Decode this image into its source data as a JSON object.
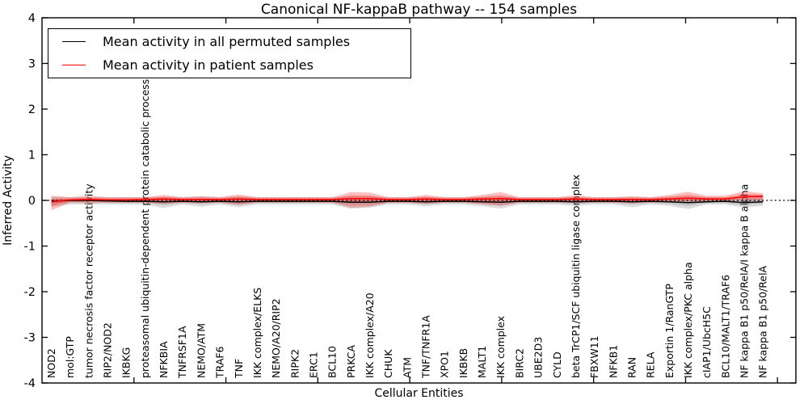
{
  "chart_data": {
    "type": "line",
    "title": "Canonical NF-kappaB pathway -- 154 samples",
    "xlabel": "Cellular Entities",
    "ylabel": "Inferred Activity",
    "ylim": [
      -4,
      4
    ],
    "yticks": [
      4,
      3,
      2,
      1,
      0,
      -1,
      -2,
      -3,
      -4
    ],
    "grid": false,
    "legend_position": "upper left",
    "zero_line": 0,
    "categories": [
      "NOD2",
      "mol:GTP",
      "tumor necrosis factor receptor activity",
      "RIP2/NOD2",
      "IKBKG",
      "proteasomal ubiquitin-dependent protein catabolic process",
      "NFKBIA",
      "TNFRSF1A",
      "NEMO/ATM",
      "TRAF6",
      "TNF",
      "IKK complex/ELKS",
      "NEMO/A20/RIP2",
      "RIPK2",
      "ERC1",
      "BCL10",
      "PRKCA",
      "IKK complex/A20",
      "CHUK",
      "ATM",
      "TNF/TNFR1A",
      "XPO1",
      "IKBKB",
      "MALT1",
      "IKK complex",
      "BIRC2",
      "UBE2D3",
      "CYLD",
      "beta TrCP1/SCF ubiquitin ligase complex",
      "FBXW11",
      "NFKB1",
      "RAN",
      "RELA",
      "Exportin 1/RanGTP",
      "IKK complex/PKC alpha",
      "cIAP1/UbcH5C",
      "BCL10/MALT1/TRAF6",
      "NF kappa B1 p50/RelA/I kappa B alpha",
      "NF kappa B1 p50/RelA"
    ],
    "series": [
      {
        "name": "Mean activity in all permuted samples",
        "color": "#000000",
        "values": [
          -0.02,
          0.0,
          0.0,
          -0.01,
          -0.02,
          -0.02,
          -0.03,
          -0.02,
          -0.03,
          -0.02,
          -0.03,
          -0.02,
          -0.02,
          -0.02,
          -0.02,
          -0.02,
          -0.04,
          -0.04,
          -0.02,
          -0.02,
          -0.03,
          -0.02,
          -0.02,
          -0.03,
          -0.04,
          -0.02,
          -0.02,
          -0.02,
          -0.03,
          -0.02,
          -0.02,
          -0.03,
          -0.02,
          -0.03,
          -0.05,
          -0.03,
          -0.02,
          -0.05,
          -0.03
        ]
      },
      {
        "name": "Mean activity in patient samples",
        "color": "#ff0000",
        "values": [
          -0.03,
          0.01,
          0.02,
          0.01,
          0.01,
          0.02,
          0.03,
          0.02,
          0.02,
          0.02,
          0.03,
          0.02,
          0.02,
          0.02,
          0.02,
          0.02,
          0.04,
          0.04,
          0.02,
          0.02,
          0.03,
          0.02,
          0.02,
          0.03,
          0.04,
          0.02,
          0.02,
          0.02,
          0.03,
          0.02,
          0.02,
          0.02,
          0.02,
          0.03,
          0.05,
          0.03,
          0.03,
          0.08,
          0.09
        ]
      }
    ],
    "bands": [
      {
        "name": "permuted-band",
        "series": 0,
        "color": "#8a8a8a",
        "lo": [
          -0.14,
          -0.09,
          -0.09,
          -0.09,
          -0.09,
          -0.09,
          -0.17,
          -0.09,
          -0.14,
          -0.09,
          -0.15,
          -0.09,
          -0.09,
          -0.09,
          -0.09,
          -0.09,
          -0.18,
          -0.16,
          -0.09,
          -0.09,
          -0.13,
          -0.09,
          -0.09,
          -0.13,
          -0.18,
          -0.09,
          -0.09,
          -0.09,
          -0.12,
          -0.09,
          -0.09,
          -0.15,
          -0.09,
          -0.12,
          -0.19,
          -0.09,
          -0.09,
          -0.16,
          -0.12
        ],
        "hi": [
          0.08,
          0.07,
          0.07,
          0.07,
          0.07,
          0.07,
          0.08,
          0.07,
          0.09,
          0.07,
          0.09,
          0.07,
          0.07,
          0.07,
          0.07,
          0.07,
          0.09,
          0.09,
          0.07,
          0.07,
          0.08,
          0.07,
          0.07,
          0.08,
          0.08,
          0.07,
          0.07,
          0.07,
          0.08,
          0.07,
          0.07,
          0.08,
          0.07,
          0.08,
          0.09,
          0.07,
          0.07,
          0.1,
          0.1
        ]
      },
      {
        "name": "patient-band",
        "series": 1,
        "color": "#ff2a2a",
        "lo": [
          -0.22,
          -0.05,
          -0.06,
          -0.05,
          -0.05,
          -0.05,
          -0.08,
          -0.05,
          -0.06,
          -0.05,
          -0.1,
          -0.05,
          -0.05,
          -0.05,
          -0.05,
          -0.05,
          -0.16,
          -0.14,
          -0.05,
          -0.05,
          -0.08,
          -0.05,
          -0.05,
          -0.08,
          -0.12,
          -0.05,
          -0.05,
          -0.05,
          -0.06,
          -0.05,
          -0.05,
          -0.06,
          -0.05,
          -0.04,
          -0.04,
          -0.03,
          -0.02,
          0.0,
          -0.01
        ],
        "hi": [
          0.1,
          0.07,
          0.1,
          0.07,
          0.07,
          0.07,
          0.12,
          0.07,
          0.09,
          0.07,
          0.13,
          0.07,
          0.07,
          0.07,
          0.07,
          0.07,
          0.18,
          0.17,
          0.07,
          0.07,
          0.12,
          0.07,
          0.07,
          0.12,
          0.18,
          0.07,
          0.07,
          0.07,
          0.11,
          0.07,
          0.07,
          0.09,
          0.07,
          0.12,
          0.19,
          0.1,
          0.1,
          0.2,
          0.16
        ]
      }
    ]
  },
  "legend": {
    "items": [
      {
        "label": "Mean activity in all permuted samples",
        "color": "#000000"
      },
      {
        "label": "Mean activity in patient samples",
        "color": "#ff0000"
      }
    ]
  }
}
